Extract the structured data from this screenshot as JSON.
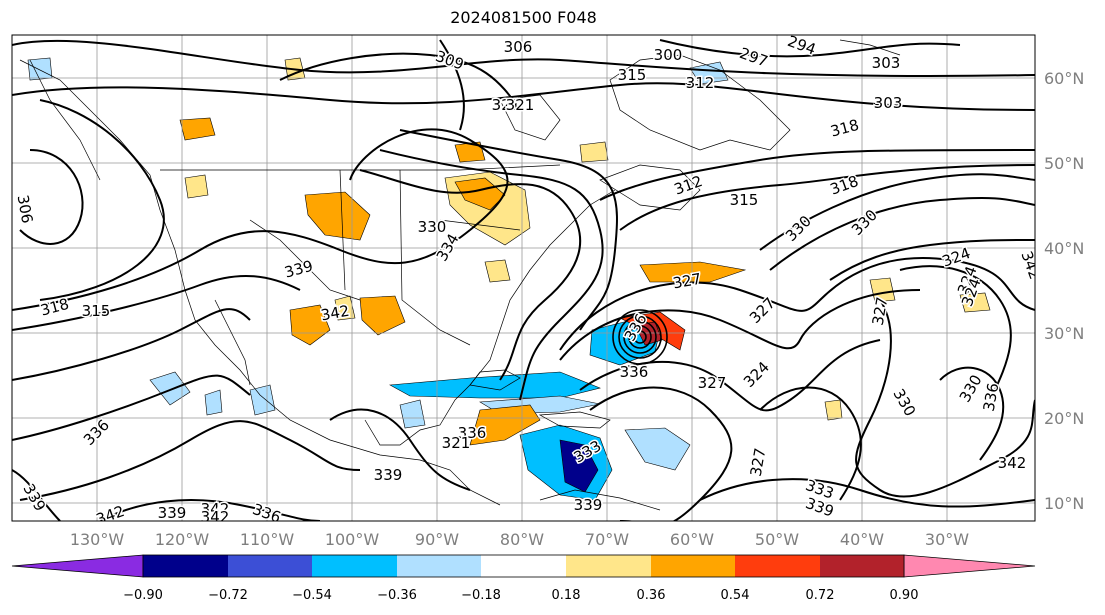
{
  "title": "2024081500 F048",
  "lon_ticks": [
    "130°W",
    "120°W",
    "110°W",
    "100°W",
    "90°W",
    "80°W",
    "70°W",
    "60°W",
    "50°W",
    "40°W",
    "30°W"
  ],
  "lat_ticks": [
    "60°N",
    "50°N",
    "40°N",
    "30°N",
    "20°N",
    "10°N"
  ],
  "colorbar": {
    "labels": [
      "−0.90",
      "−0.72",
      "−0.54",
      "−0.36",
      "−0.18",
      "0.18",
      "0.36",
      "0.54",
      "0.72",
      "0.90"
    ],
    "colors": [
      "#8a2be2",
      "#00008b",
      "#3c4fd6",
      "#00bfff",
      "#b0e0ff",
      "#ffffff",
      "#ffe68a",
      "#ffa500",
      "#ff3d0d",
      "#b2222b",
      "#ff88b0"
    ]
  },
  "contour_labels": [
    "309",
    "306",
    "300",
    "297",
    "294",
    "303",
    "315",
    "312",
    "303",
    "321",
    "318",
    "306",
    "330",
    "334",
    "336",
    "321",
    "312",
    "315",
    "318",
    "339",
    "327",
    "330",
    "318",
    "315",
    "342",
    "327",
    "324",
    "336",
    "324",
    "330",
    "333",
    "339",
    "342",
    "336",
    "327",
    "339",
    "336",
    "321",
    "330",
    "342",
    "339",
    "339",
    "342",
    "336",
    "342",
    "330",
    "327",
    "327",
    "324",
    "324",
    "336",
    "333",
    "339",
    "342"
  ]
}
